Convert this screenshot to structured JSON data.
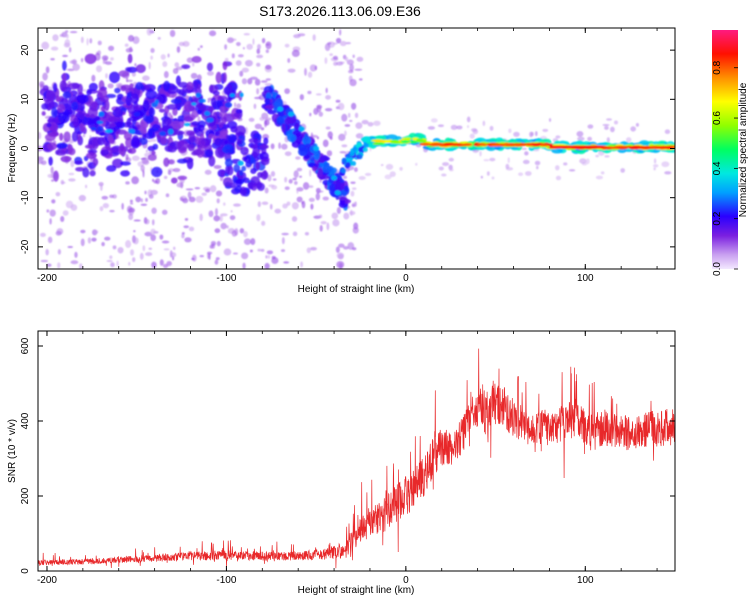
{
  "title": "S173.2026.113.06.09.E36",
  "chart_data": [
    {
      "type": "heatmap",
      "name": "spectrogram",
      "xlabel": "Height of straight line (km)",
      "ylabel": "Frequency (Hz)",
      "xlim": [
        -205,
        150
      ],
      "ylim": [
        -24.5,
        24.5
      ],
      "xticks": [
        -200,
        -100,
        0,
        100
      ],
      "yticks": [
        -20,
        -10,
        0,
        10,
        20
      ],
      "colorbar": {
        "label": "Normalized spectral amplitude",
        "range": [
          0.0,
          0.95
        ],
        "ticks": [
          0.0,
          0.2,
          0.4,
          0.6,
          0.8
        ],
        "tick_labels": [
          "0.0",
          "0.2",
          "0.4",
          "0.6",
          "0.8"
        ],
        "colors": [
          "#ffffff",
          "#c9a0f0",
          "#7a1fe0",
          "#2a00ff",
          "#00c8ff",
          "#00ff7f",
          "#7fff00",
          "#ffff00",
          "#ff8000",
          "#ff0000",
          "#ff1a75"
        ]
      },
      "features": [
        {
          "description": "scattered noise",
          "x_range": [
            -205,
            -30
          ],
          "y_range": [
            -24,
            24
          ],
          "amplitude": 0.1
        },
        {
          "description": "dense blob band",
          "x_range": [
            -200,
            -100
          ],
          "y_range": [
            -2,
            13
          ],
          "amplitude": 0.2
        },
        {
          "description": "descending track",
          "x_range": [
            -75,
            -35
          ],
          "y_range": [
            -10,
            10
          ],
          "amplitude": 0.3
        },
        {
          "description": "near-constant line",
          "x_range": [
            -30,
            150
          ],
          "y_range": [
            -0.5,
            3
          ],
          "amplitude": 0.9
        }
      ]
    },
    {
      "type": "line",
      "name": "snr",
      "xlabel": "Height of straight line (km)",
      "ylabel": "SNR (10 * v/v)",
      "xlim": [
        -205,
        150
      ],
      "ylim": [
        0,
        640
      ],
      "xticks": [
        -200,
        -100,
        0,
        100
      ],
      "yticks": [
        0,
        200,
        400,
        600
      ],
      "color": "#e8282a",
      "envelope": {
        "x": [
          -205,
          -180,
          -150,
          -120,
          -100,
          -80,
          -60,
          -45,
          -35,
          -28,
          -20,
          -12,
          -5,
          0,
          5,
          10,
          15,
          20,
          25,
          30,
          35,
          40,
          45,
          50,
          55,
          60,
          65,
          70,
          75,
          80,
          85,
          90,
          95,
          100,
          110,
          120,
          130,
          140,
          150
        ],
        "y": [
          22,
          25,
          32,
          40,
          42,
          40,
          40,
          45,
          55,
          90,
          130,
          150,
          180,
          200,
          220,
          250,
          300,
          330,
          330,
          350,
          390,
          440,
          420,
          450,
          430,
          410,
          390,
          380,
          390,
          380,
          390,
          400,
          410,
          380,
          380,
          370,
          370,
          380,
          380
        ],
        "noise": [
          12,
          12,
          15,
          20,
          22,
          20,
          20,
          25,
          35,
          55,
          70,
          80,
          85,
          90,
          90,
          90,
          90,
          90,
          80,
          80,
          90,
          100,
          100,
          100,
          90,
          85,
          80,
          80,
          80,
          80,
          80,
          85,
          90,
          80,
          80,
          80,
          80,
          85,
          90
        ]
      }
    }
  ]
}
